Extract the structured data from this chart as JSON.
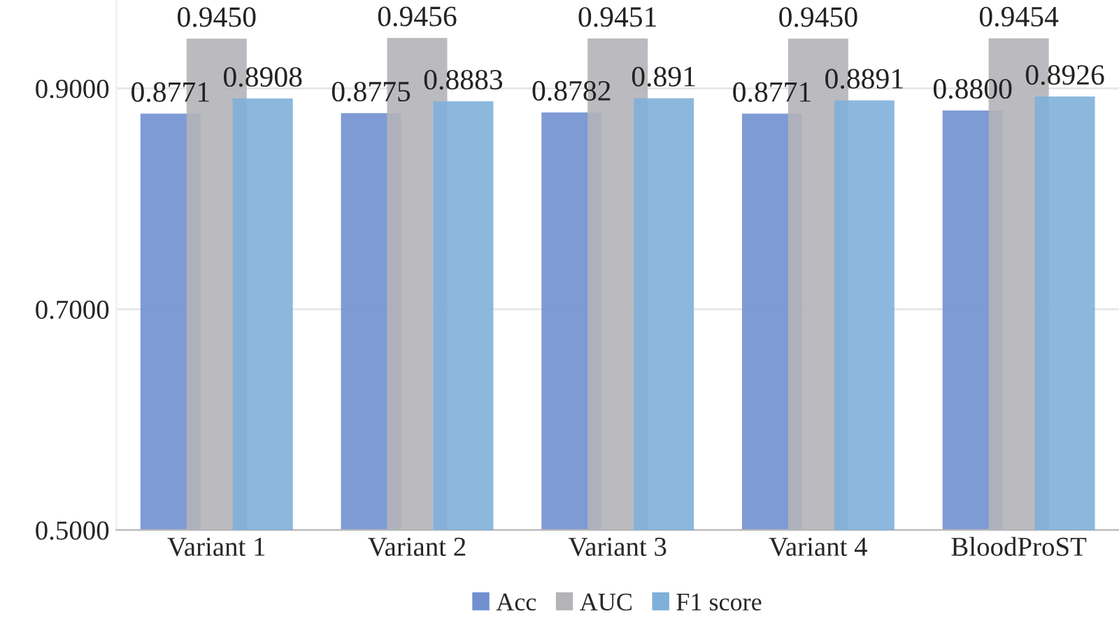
{
  "chart_data": {
    "type": "bar",
    "categories": [
      "Variant 1",
      "Variant 2",
      "Variant 3",
      "Variant 4",
      "BloodProST"
    ],
    "series": [
      {
        "name": "Acc",
        "color": "#7090d0",
        "values": [
          0.8771,
          0.8775,
          0.8782,
          0.8771,
          0.88
        ],
        "value_labels": [
          "0.8771",
          "0.8775",
          "0.8782",
          "0.8771",
          "0.8800"
        ]
      },
      {
        "name": "AUC",
        "color": "#b4b4b8",
        "values": [
          0.945,
          0.9456,
          0.9451,
          0.945,
          0.9454
        ],
        "value_labels": [
          "0.9450",
          "0.9456",
          "0.9451",
          "0.9450",
          "0.9454"
        ]
      },
      {
        "name": "F1 score",
        "color": "#7fb0da",
        "values": [
          0.8908,
          0.8883,
          0.891,
          0.8891,
          0.8926
        ],
        "value_labels": [
          "0.8908",
          "0.8883",
          "0.891",
          "0.8891",
          "0.8926"
        ]
      }
    ],
    "ylim": [
      0.5,
      0.98
    ],
    "yticks": [
      {
        "value": 0.5,
        "label": "0.5000"
      },
      {
        "value": 0.7,
        "label": "0.7000"
      },
      {
        "value": 0.9,
        "label": "0.9000"
      }
    ],
    "grid": "y",
    "legend": "bottom"
  }
}
